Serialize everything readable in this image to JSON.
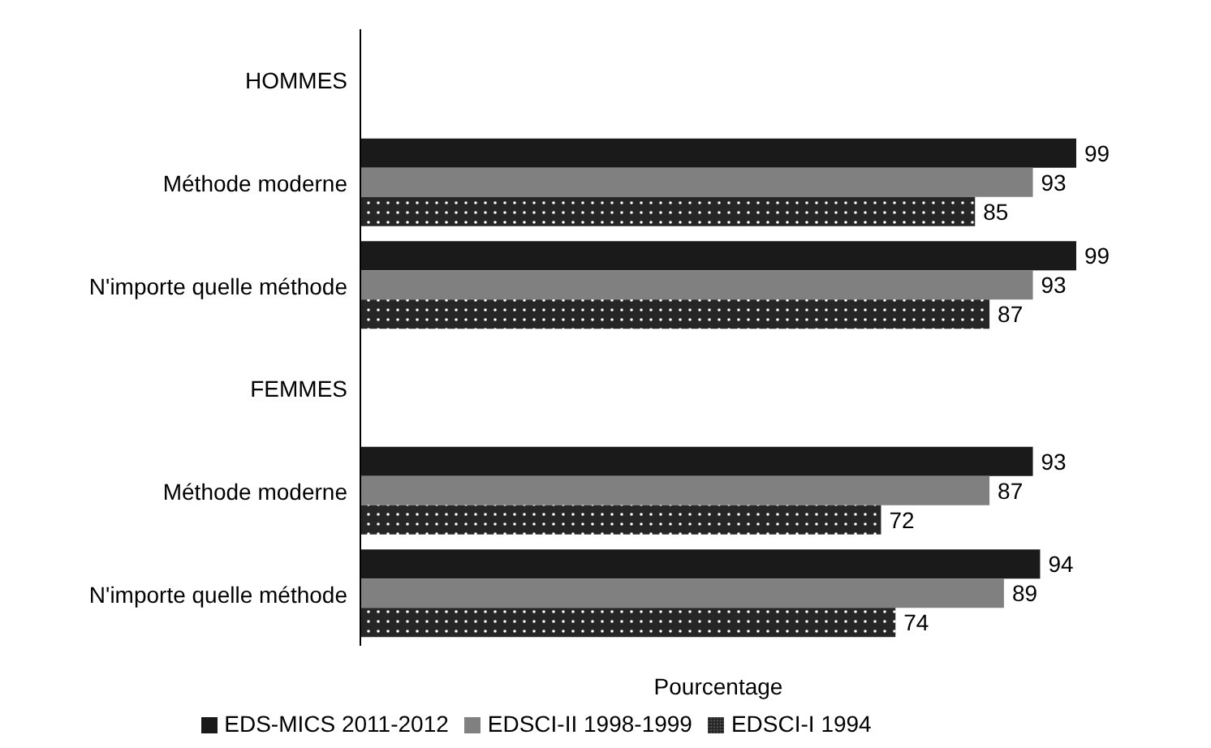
{
  "chart_data": {
    "type": "bar",
    "orientation": "horizontal",
    "xlabel": "Pourcentage",
    "categories": [
      "HOMMES",
      "Méthode moderne",
      "N'importe quelle méthode",
      "FEMMES",
      "Méthode moderne",
      "N'importe quelle méthode"
    ],
    "series": [
      {
        "name": "EDS-MICS 2011-2012",
        "color": "#1a1a1a",
        "values": [
          null,
          99,
          99,
          null,
          93,
          94
        ]
      },
      {
        "name": "EDSCI-II 1998-1999",
        "color": "#808080",
        "values": [
          null,
          93,
          93,
          null,
          87,
          89
        ]
      },
      {
        "name": "EDSCI-I 1994",
        "color": "#262626",
        "values": [
          null,
          85,
          87,
          null,
          72,
          74
        ]
      }
    ],
    "data_labels": true,
    "legend": "bottom",
    "tick_labels": "y"
  }
}
